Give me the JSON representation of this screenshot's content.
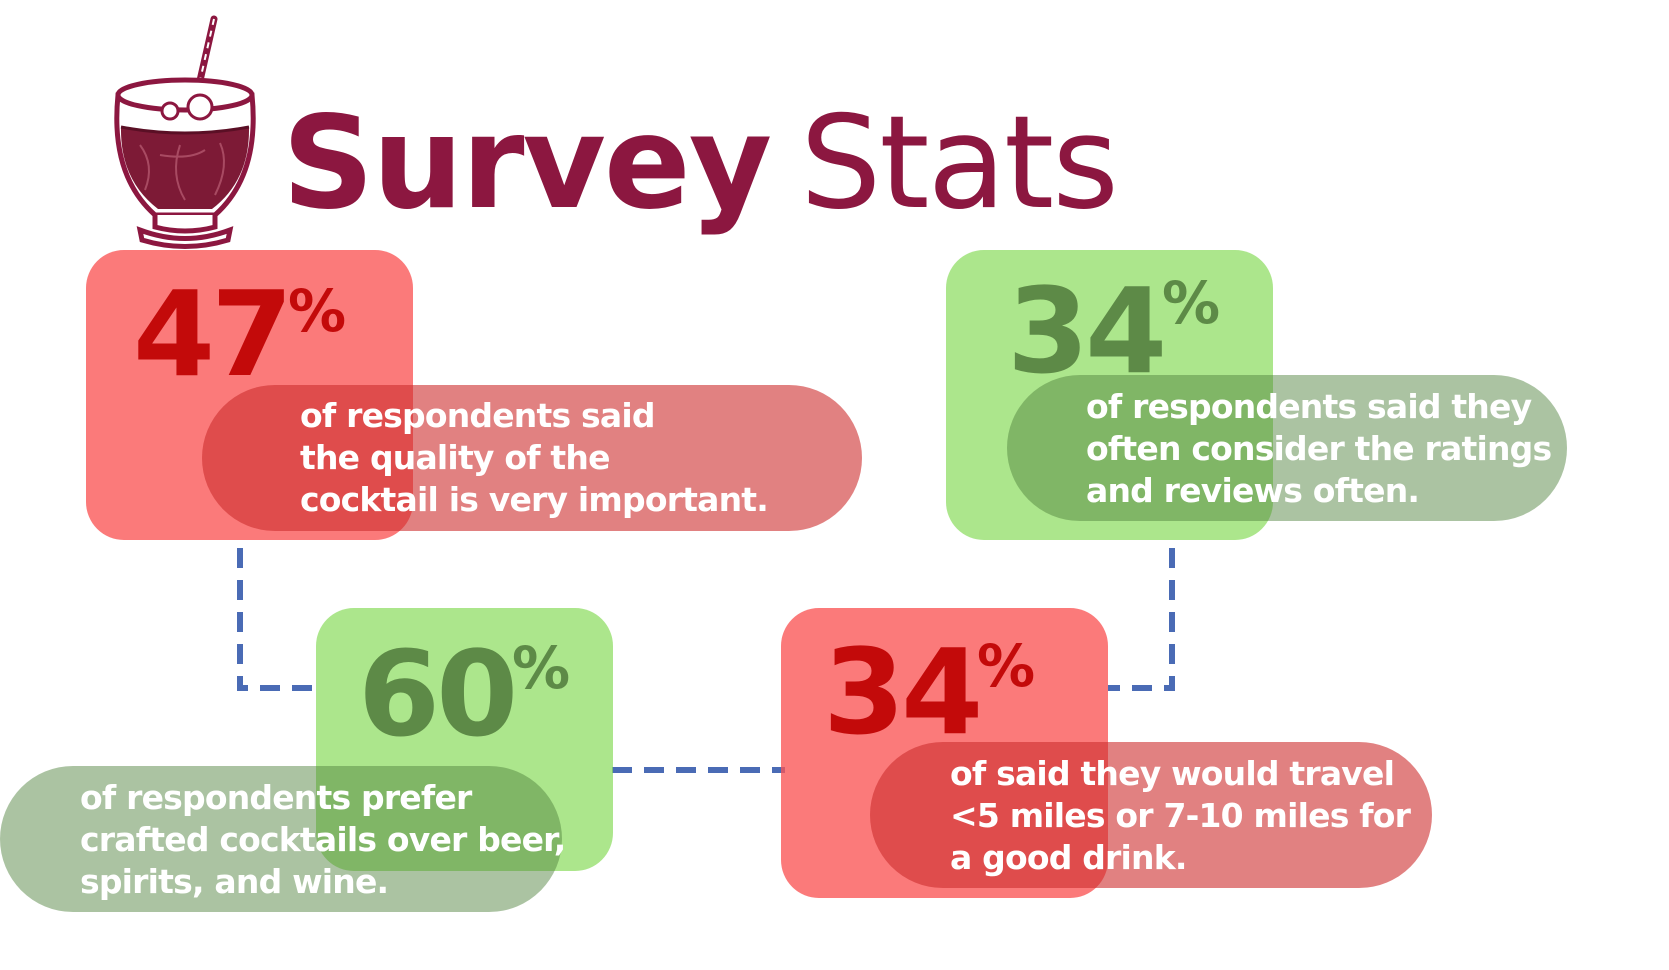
{
  "header": {
    "title_bold": "Survey",
    "title_light": "Stats",
    "icon": "cocktail-glass-icon"
  },
  "colors": {
    "title": "#8c1740",
    "red_box": "#fa5555",
    "red_number": "#c30a0a",
    "green_box": "#8cdc5f",
    "green_number": "#5d8a47",
    "connector": "#4a6bb5"
  },
  "stats": [
    {
      "value": "47",
      "unit": "%",
      "color": "red",
      "lines": [
        "of respondents said",
        "the quality of the",
        "cocktail is very important."
      ]
    },
    {
      "value": "34",
      "unit": "%",
      "color": "green",
      "lines": [
        "of respondents said they",
        "often consider the ratings",
        "and reviews often."
      ]
    },
    {
      "value": "60",
      "unit": "%",
      "color": "green",
      "lines": [
        "of respondents prefer",
        "crafted cocktails over beer,",
        "spirits, and wine."
      ]
    },
    {
      "value": "34",
      "unit": "%",
      "color": "red",
      "lines": [
        "of said they would travel",
        "<5 miles or 7-10 miles for",
        "a good drink."
      ]
    }
  ]
}
